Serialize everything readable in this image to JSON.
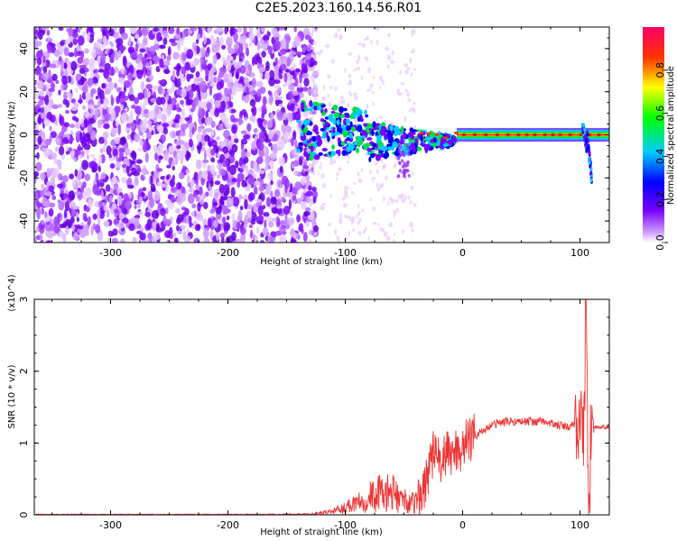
{
  "title": "C2E5.2023.160.14.56.R01",
  "chart_data": [
    {
      "type": "heatmap",
      "xlabel": "Height of straight line (km)",
      "ylabel": "Frequency (Hz)",
      "xlim": [
        -365,
        125
      ],
      "ylim": [
        -50,
        50
      ],
      "xticks": [
        -300,
        -200,
        -100,
        0,
        100
      ],
      "yticks": [
        -40,
        -20,
        0,
        20,
        40
      ],
      "colorbar": {
        "label": "Normalized spectral amplitude",
        "range": [
          0.0,
          1.0
        ],
        "ticks": [
          0.0,
          0.2,
          0.4,
          0.6,
          0.8
        ]
      },
      "carrier_frequency_hz": 0,
      "noise_region_x": [
        -365,
        -125
      ]
    },
    {
      "type": "line",
      "xlabel": "Height of straight line (km)",
      "ylabel": "SNR (10 * v/v)",
      "scale_label": "(x10^4)",
      "xlim": [
        -365,
        125
      ],
      "ylim": [
        0,
        3
      ],
      "xticks": [
        -300,
        -200,
        -100,
        0,
        100
      ],
      "yticks": [
        0,
        1,
        2,
        3
      ],
      "line_color": "#ee3333",
      "x": [
        -365,
        -300,
        -200,
        -130,
        -110,
        -100,
        -90,
        -80,
        -70,
        -60,
        -50,
        -40,
        -35,
        -30,
        -25,
        -20,
        -10,
        0,
        10,
        20,
        30,
        40,
        50,
        60,
        70,
        80,
        90,
        95,
        100,
        103,
        105,
        108,
        110,
        112,
        115,
        125
      ],
      "y": [
        0.0,
        0.0,
        0.0,
        0.01,
        0.05,
        0.1,
        0.2,
        0.25,
        0.3,
        0.3,
        0.2,
        0.15,
        0.25,
        0.6,
        0.85,
        0.75,
        0.85,
        0.95,
        1.1,
        1.2,
        1.28,
        1.3,
        1.3,
        1.3,
        1.3,
        1.25,
        1.22,
        1.25,
        1.4,
        1.2,
        2.3,
        0.2,
        1.6,
        1.2,
        1.22,
        1.22
      ]
    }
  ]
}
